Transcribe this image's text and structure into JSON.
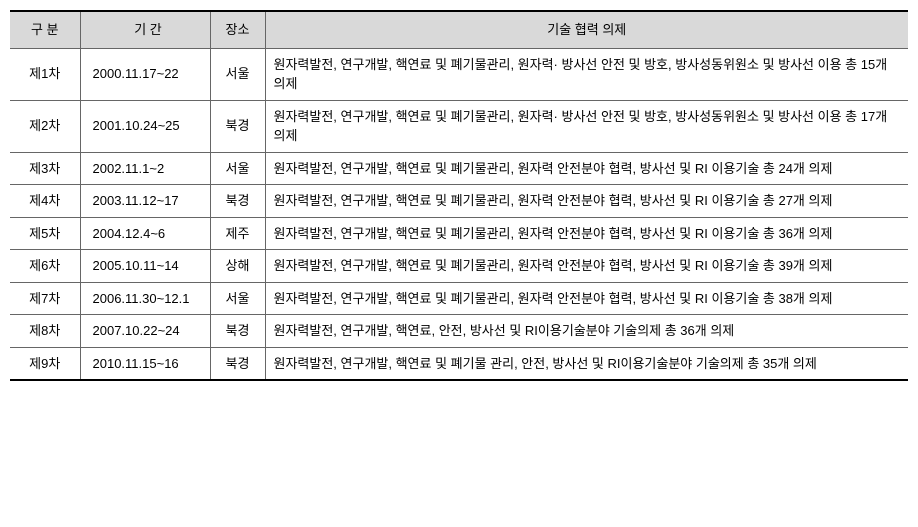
{
  "headers": {
    "division": "구 분",
    "period": "기 간",
    "place": "장소",
    "topic": "기술 협력 의제"
  },
  "rows": [
    {
      "division": "제1차",
      "period": "2000.11.17~22",
      "place": "서울",
      "topic": "원자력발전, 연구개발, 핵연료 및 폐기물관리, 원자력· 방사선 안전 및 방호, 방사성동위원소 및 방사선 이용 총 15개 의제"
    },
    {
      "division": "제2차",
      "period": "2001.10.24~25",
      "place": "북경",
      "topic": "원자력발전, 연구개발, 핵연료 및 폐기물관리, 원자력· 방사선 안전 및 방호, 방사성동위원소 및 방사선 이용 총 17개 의제"
    },
    {
      "division": "제3차",
      "period": "2002.11.1~2",
      "place": "서울",
      "topic": "원자력발전, 연구개발, 핵연료 및 폐기물관리, 원자력 안전분야 협력, 방사선 및 RI 이용기술 총 24개 의제"
    },
    {
      "division": "제4차",
      "period": "2003.11.12~17",
      "place": "북경",
      "topic": "원자력발전, 연구개발, 핵연료 및 폐기물관리, 원자력 안전분야 협력, 방사선 및 RI 이용기술 총 27개 의제"
    },
    {
      "division": "제5차",
      "period": "2004.12.4~6",
      "place": "제주",
      "topic": "원자력발전, 연구개발, 핵연료 및 폐기물관리, 원자력 안전분야 협력, 방사선 및 RI 이용기술 총 36개 의제"
    },
    {
      "division": "제6차",
      "period": "2005.10.11~14",
      "place": "상해",
      "topic": "원자력발전, 연구개발, 핵연료 및 폐기물관리, 원자력 안전분야 협력, 방사선 및 RI 이용기술 총 39개 의제"
    },
    {
      "division": "제7차",
      "period": "2006.11.30~12.1",
      "place": "서울",
      "topic": "원자력발전, 연구개발, 핵연료 및 폐기물관리, 원자력 안전분야 협력, 방사선 및 RI 이용기술 총 38개 의제"
    },
    {
      "division": "제8차",
      "period": "2007.10.22~24",
      "place": "북경",
      "topic": "원자력발전, 연구개발, 핵연료, 안전, 방사선 및 RI이용기술분야 기술의제 총 36개 의제"
    },
    {
      "division": "제9차",
      "period": "2010.11.15~16",
      "place": "북경",
      "topic": "원자력발전, 연구개발, 핵연료 및 폐기물 관리, 안전, 방사선 및 RI이용기술분야 기술의제 총 35개 의제"
    }
  ]
}
